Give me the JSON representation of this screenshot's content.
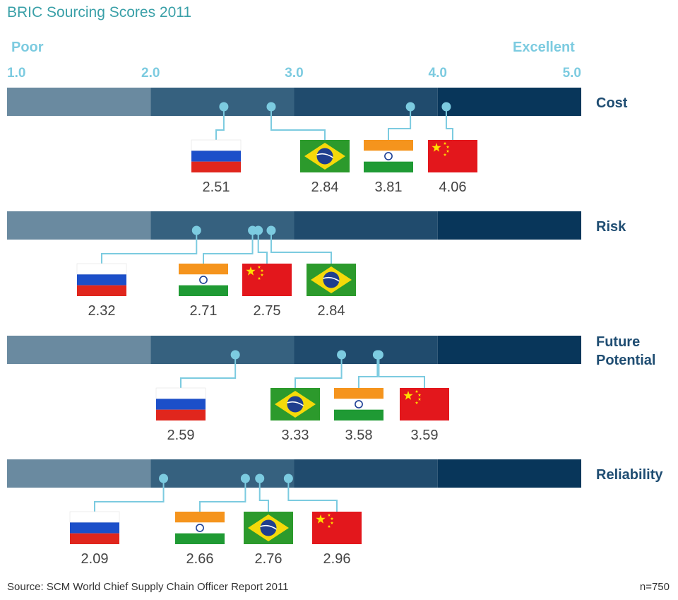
{
  "colors": {
    "band": [
      "#6a8aa0",
      "#36617f",
      "#204b6d",
      "#08365a"
    ],
    "accent": "#7ccbe0",
    "title": "#3aa0a8",
    "category": "#1f4d72",
    "values": "#444444"
  },
  "chart_data": {
    "type": "scatter",
    "title": "BRIC Sourcing Scores 2011",
    "scale": {
      "low_label": "Poor",
      "high_label": "Excellent",
      "range": [
        1.0,
        5.0
      ],
      "ticks": [
        "1.0",
        "2.0",
        "3.0",
        "4.0",
        "5.0"
      ]
    },
    "categories": [
      {
        "label": "Cost",
        "points": [
          {
            "country": "Russia",
            "value": "2.51"
          },
          {
            "country": "Brazil",
            "value": "2.84"
          },
          {
            "country": "India",
            "value": "3.81"
          },
          {
            "country": "China",
            "value": "4.06"
          }
        ]
      },
      {
        "label": "Risk",
        "points": [
          {
            "country": "Russia",
            "value": "2.32"
          },
          {
            "country": "India",
            "value": "2.71"
          },
          {
            "country": "China",
            "value": "2.75"
          },
          {
            "country": "Brazil",
            "value": "2.84"
          }
        ]
      },
      {
        "label": "Future Potential",
        "points": [
          {
            "country": "Russia",
            "value": "2.59"
          },
          {
            "country": "Brazil",
            "value": "3.33"
          },
          {
            "country": "India",
            "value": "3.58"
          },
          {
            "country": "China",
            "value": "3.59"
          }
        ]
      },
      {
        "label": "Reliability",
        "points": [
          {
            "country": "Russia",
            "value": "2.09"
          },
          {
            "country": "India",
            "value": "2.66"
          },
          {
            "country": "Brazil",
            "value": "2.76"
          },
          {
            "country": "China",
            "value": "2.96"
          }
        ]
      }
    ]
  },
  "footer": {
    "source": "Source: SCM World Chief Supply Chain Officer Report 2011",
    "n": "n=750"
  }
}
